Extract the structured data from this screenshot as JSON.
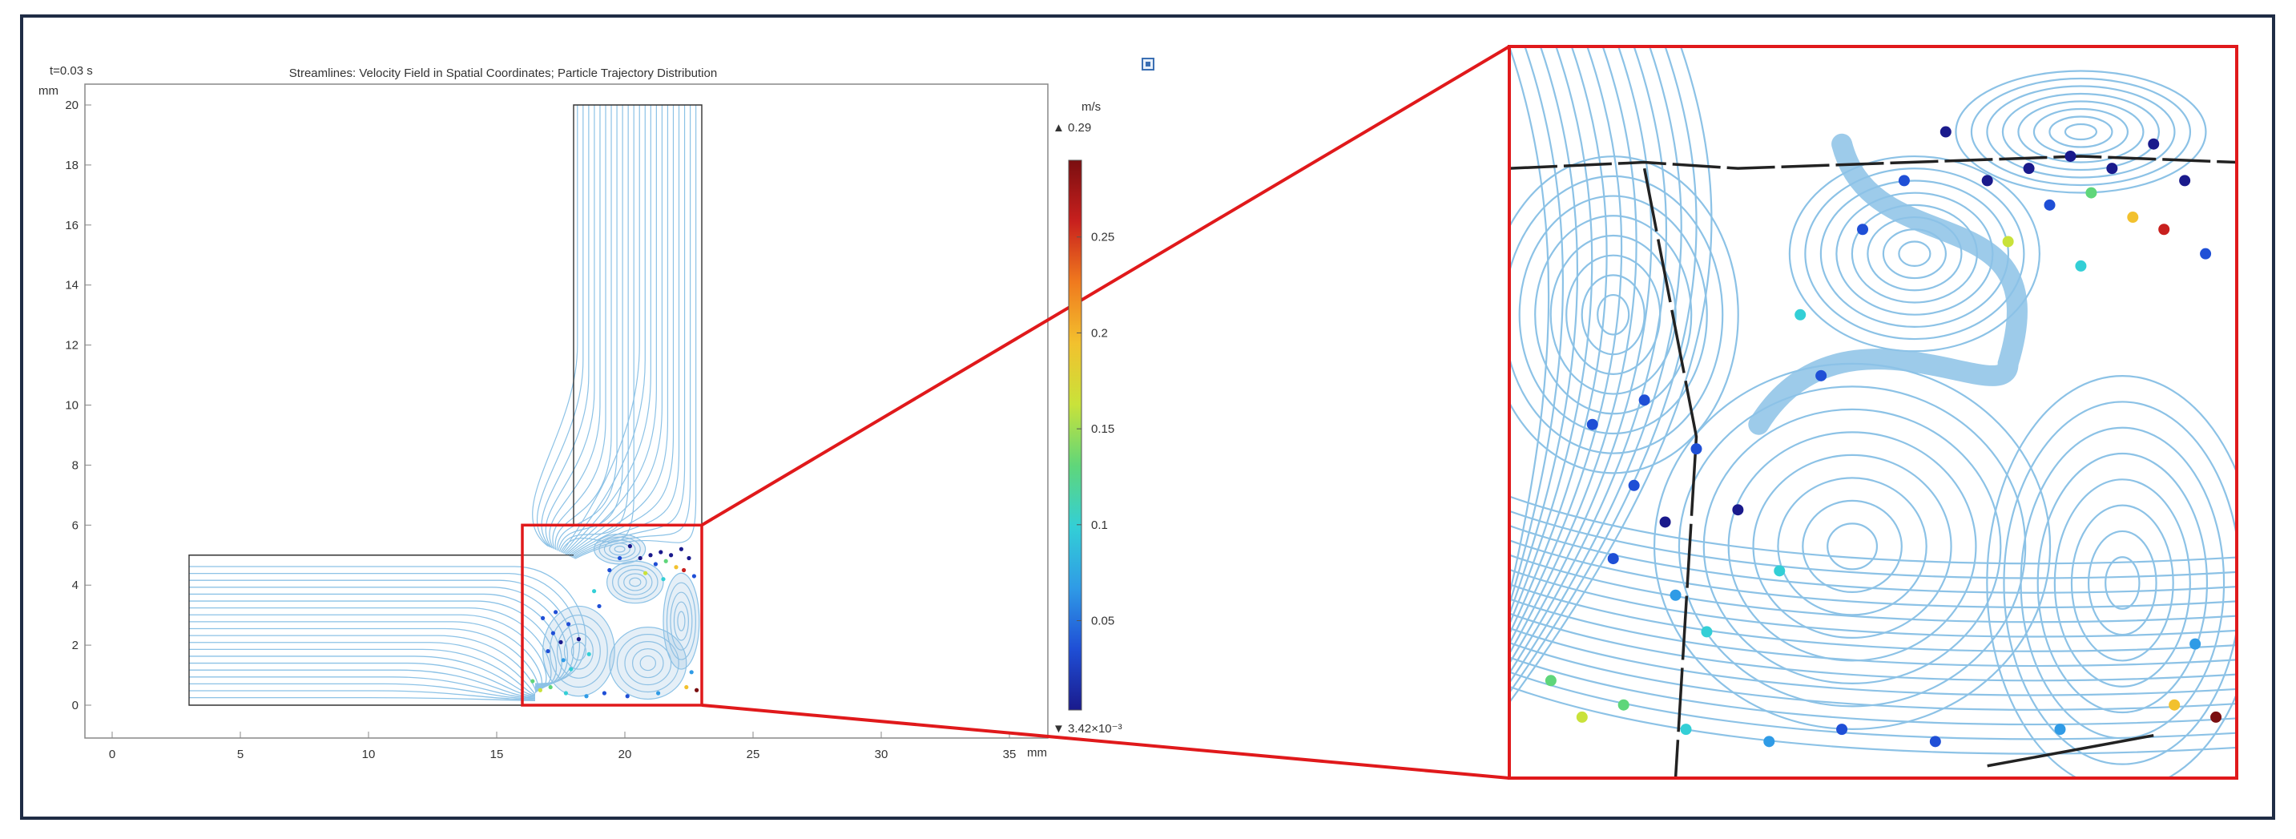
{
  "window": {
    "time_label": "t=0.03 s"
  },
  "chart_data": {
    "type": "scatter",
    "title": "Streamlines: Velocity Field in Spatial Coordinates; Particle Trajectory Distribution",
    "x_unit": "mm",
    "y_unit": "mm",
    "xlim": [
      -1,
      36
    ],
    "ylim": [
      -1,
      20.5
    ],
    "x_ticks": [
      0,
      5,
      10,
      15,
      20,
      25,
      30,
      35
    ],
    "y_ticks": [
      0,
      2,
      4,
      6,
      8,
      10,
      12,
      14,
      16,
      18,
      20
    ],
    "geometry": {
      "horizontal_channel": {
        "x": [
          3,
          18
        ],
        "y": [
          0,
          5
        ]
      },
      "vertical_channel": {
        "x": [
          18,
          23
        ],
        "y": [
          0,
          20
        ]
      }
    },
    "zoom_region": {
      "x": [
        16,
        23
      ],
      "y": [
        0,
        6
      ]
    },
    "colorbar": {
      "unit": "m/s",
      "max_label": "▲ 0.29",
      "min_label": "▼ 3.42×10⁻³",
      "min": 0.00342,
      "max": 0.29,
      "ticks": [
        "0.05",
        "0.1",
        "0.15",
        "0.2",
        "0.25"
      ],
      "tick_values": [
        0.05,
        0.1,
        0.15,
        0.2,
        0.25
      ],
      "colormap": [
        "#1a1a8c",
        "#1f4fd6",
        "#2f9be6",
        "#33cfd6",
        "#5fd67a",
        "#c9e23a",
        "#f2c12e",
        "#f07a1e",
        "#c8201e",
        "#7a0e10"
      ]
    },
    "streamline_color": "#8cc2e6",
    "particles": [
      {
        "x": 20.6,
        "y": 4.9,
        "v": 0.02
      },
      {
        "x": 21.0,
        "y": 5.0,
        "v": 0.01
      },
      {
        "x": 21.4,
        "y": 5.1,
        "v": 0.01
      },
      {
        "x": 21.8,
        "y": 5.0,
        "v": 0.02
      },
      {
        "x": 22.2,
        "y": 5.2,
        "v": 0.01
      },
      {
        "x": 22.5,
        "y": 4.9,
        "v": 0.03
      },
      {
        "x": 20.2,
        "y": 5.3,
        "v": 0.03
      },
      {
        "x": 21.2,
        "y": 4.7,
        "v": 0.04
      },
      {
        "x": 21.6,
        "y": 4.8,
        "v": 0.12
      },
      {
        "x": 22.0,
        "y": 4.6,
        "v": 0.18
      },
      {
        "x": 22.3,
        "y": 4.5,
        "v": 0.24
      },
      {
        "x": 20.8,
        "y": 4.4,
        "v": 0.15
      },
      {
        "x": 19.8,
        "y": 4.9,
        "v": 0.06
      },
      {
        "x": 22.7,
        "y": 4.3,
        "v": 0.05
      },
      {
        "x": 21.5,
        "y": 4.2,
        "v": 0.09
      },
      {
        "x": 17.2,
        "y": 2.4,
        "v": 0.04
      },
      {
        "x": 17.5,
        "y": 2.1,
        "v": 0.03
      },
      {
        "x": 17.8,
        "y": 2.7,
        "v": 0.05
      },
      {
        "x": 17.0,
        "y": 1.8,
        "v": 0.05
      },
      {
        "x": 16.8,
        "y": 2.9,
        "v": 0.04
      },
      {
        "x": 17.6,
        "y": 1.5,
        "v": 0.07
      },
      {
        "x": 17.3,
        "y": 3.1,
        "v": 0.06
      },
      {
        "x": 18.2,
        "y": 2.2,
        "v": 0.03
      },
      {
        "x": 17.9,
        "y": 1.2,
        "v": 0.1
      },
      {
        "x": 16.4,
        "y": 0.8,
        "v": 0.14
      },
      {
        "x": 16.7,
        "y": 0.5,
        "v": 0.16
      },
      {
        "x": 17.1,
        "y": 0.6,
        "v": 0.12
      },
      {
        "x": 17.7,
        "y": 0.4,
        "v": 0.1
      },
      {
        "x": 18.5,
        "y": 0.3,
        "v": 0.08
      },
      {
        "x": 19.2,
        "y": 0.4,
        "v": 0.06
      },
      {
        "x": 20.1,
        "y": 0.3,
        "v": 0.05
      },
      {
        "x": 21.3,
        "y": 0.4,
        "v": 0.07
      },
      {
        "x": 22.4,
        "y": 0.6,
        "v": 0.2
      },
      {
        "x": 22.8,
        "y": 0.5,
        "v": 0.27
      },
      {
        "x": 22.6,
        "y": 1.1,
        "v": 0.08
      },
      {
        "x": 18.6,
        "y": 1.7,
        "v": 0.11
      },
      {
        "x": 19.0,
        "y": 3.3,
        "v": 0.06
      },
      {
        "x": 18.8,
        "y": 3.8,
        "v": 0.09
      },
      {
        "x": 19.4,
        "y": 4.5,
        "v": 0.04
      }
    ]
  }
}
